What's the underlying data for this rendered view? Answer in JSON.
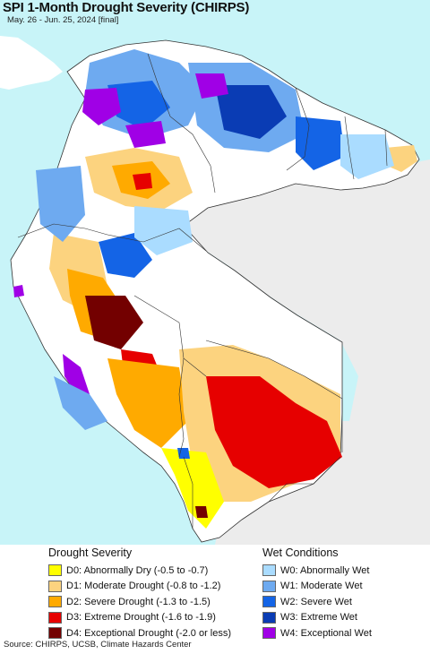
{
  "header": {
    "title": "SPI 1-Month Drought Severity (CHIRPS)",
    "subtitle": "May. 26 - Jun. 25, 2024 [final]"
  },
  "colors": {
    "ocean": "#c8f4f8",
    "land_outside": "#ececec",
    "no_change": "#ffffff",
    "border": "#333333"
  },
  "legend": {
    "drought": {
      "heading": "Drought Severity",
      "items": [
        {
          "label": "D0: Abnormally Dry (-0.5 to -0.7)",
          "color": "#ffff00"
        },
        {
          "label": "D1: Moderate Drought (-0.8 to -1.2)",
          "color": "#fcd37f"
        },
        {
          "label": "D2: Severe Drought (-1.3 to -1.5)",
          "color": "#ffaa00"
        },
        {
          "label": "D3: Extreme Drought (-1.6 to -1.9)",
          "color": "#e60000"
        },
        {
          "label": "D4: Exceptional Drought (-2.0 or less)",
          "color": "#730000"
        }
      ]
    },
    "wet": {
      "heading": "Wet Conditions",
      "items": [
        {
          "label": "W0: Abnormally Wet",
          "color": "#aadcff"
        },
        {
          "label": "W1: Moderate Wet",
          "color": "#6eaaf0"
        },
        {
          "label": "W2: Severe Wet",
          "color": "#1464e6"
        },
        {
          "label": "W3: Extreme Wet",
          "color": "#0a3cb4"
        },
        {
          "label": "W4: Exceptional Wet",
          "color": "#a000e6"
        }
      ]
    }
  },
  "footer": {
    "source": "Source: CHIRPS, UCSB, Climate Hazards Center"
  }
}
